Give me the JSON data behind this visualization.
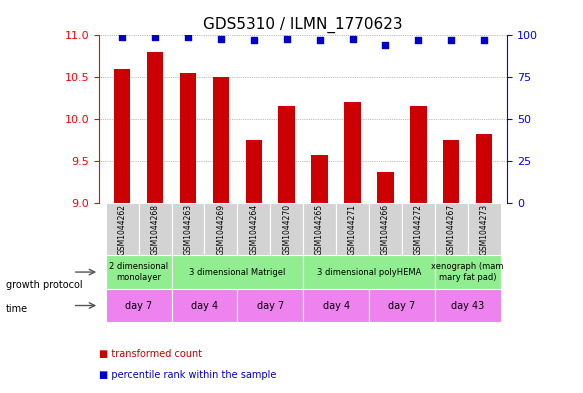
{
  "title": "GDS5310 / ILMN_1770623",
  "samples": [
    "GSM1044262",
    "GSM1044268",
    "GSM1044263",
    "GSM1044269",
    "GSM1044264",
    "GSM1044270",
    "GSM1044265",
    "GSM1044271",
    "GSM1044266",
    "GSM1044272",
    "GSM1044267",
    "GSM1044273"
  ],
  "bar_values": [
    10.6,
    10.8,
    10.55,
    10.5,
    9.75,
    10.15,
    9.57,
    10.2,
    9.37,
    10.15,
    9.75,
    9.82
  ],
  "bar_color": "#cc0000",
  "dot_values": [
    99,
    99,
    99,
    98,
    97,
    98,
    97,
    98,
    94,
    97,
    97,
    97
  ],
  "dot_color": "#0000cc",
  "ymin": 9.0,
  "ymax": 11.0,
  "y2min": 0,
  "y2max": 100,
  "yticks": [
    9.0,
    9.5,
    10.0,
    10.5,
    11.0
  ],
  "y2ticks": [
    0,
    25,
    50,
    75,
    100
  ],
  "growth_protocol_groups": [
    {
      "label": "2 dimensional\nmonolayer",
      "start": 0,
      "end": 2,
      "color": "#90EE90"
    },
    {
      "label": "3 dimensional Matrigel",
      "start": 2,
      "end": 6,
      "color": "#90EE90"
    },
    {
      "label": "3 dimensional polyHEMA",
      "start": 6,
      "end": 10,
      "color": "#90EE90"
    },
    {
      "label": "xenograph (mam\nmary fat pad)",
      "start": 10,
      "end": 12,
      "color": "#90EE90"
    }
  ],
  "time_groups": [
    {
      "label": "day 7",
      "start": 0,
      "end": 2,
      "color": "#ee82ee"
    },
    {
      "label": "day 4",
      "start": 2,
      "end": 4,
      "color": "#ee82ee"
    },
    {
      "label": "day 7",
      "start": 4,
      "end": 6,
      "color": "#ee82ee"
    },
    {
      "label": "day 4",
      "start": 6,
      "end": 8,
      "color": "#ee82ee"
    },
    {
      "label": "day 7",
      "start": 8,
      "end": 10,
      "color": "#ee82ee"
    },
    {
      "label": "day 43",
      "start": 10,
      "end": 12,
      "color": "#ee82ee"
    }
  ],
  "legend_items": [
    {
      "label": "transformed count",
      "color": "#cc0000"
    },
    {
      "label": "percentile rank within the sample",
      "color": "#0000cc"
    }
  ],
  "bar_width": 0.5,
  "figsize": [
    5.83,
    3.93
  ],
  "dpi": 100
}
